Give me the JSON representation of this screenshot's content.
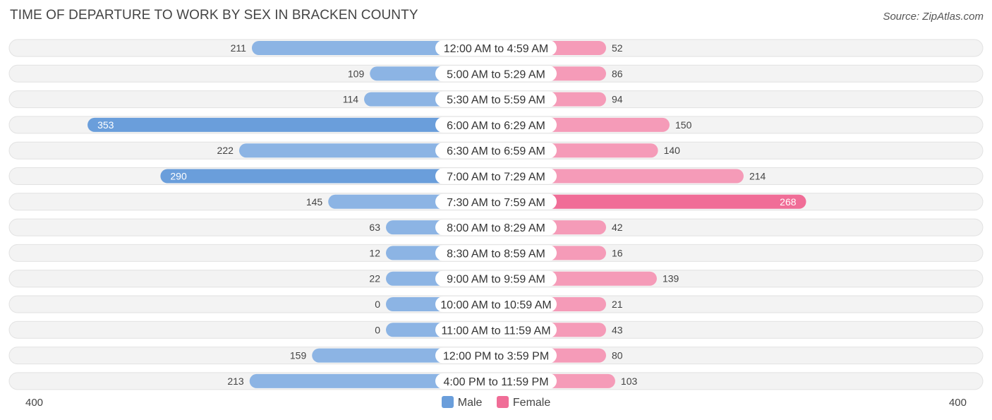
{
  "title": "TIME OF DEPARTURE TO WORK BY SEX IN BRACKEN COUNTY",
  "source": "Source: ZipAtlas.com",
  "legend": {
    "male_label": "Male",
    "female_label": "Female"
  },
  "axis": {
    "left_label": "400",
    "right_label": "400"
  },
  "colors": {
    "male": "#8cb4e4",
    "male_strong": "#6a9edb",
    "female": "#f59bb8",
    "female_strong": "#f06d97",
    "row_bg": "#f1f1f1"
  },
  "chart_data": {
    "type": "bar",
    "orientation": "horizontal-diverging",
    "categories": [
      "12:00 AM to 4:59 AM",
      "5:00 AM to 5:29 AM",
      "5:30 AM to 5:59 AM",
      "6:00 AM to 6:29 AM",
      "6:30 AM to 6:59 AM",
      "7:00 AM to 7:29 AM",
      "7:30 AM to 7:59 AM",
      "8:00 AM to 8:29 AM",
      "8:30 AM to 8:59 AM",
      "9:00 AM to 9:59 AM",
      "10:00 AM to 10:59 AM",
      "11:00 AM to 11:59 AM",
      "12:00 PM to 3:59 PM",
      "4:00 PM to 11:59 PM"
    ],
    "series": [
      {
        "name": "Male",
        "values": [
          211,
          109,
          114,
          353,
          222,
          290,
          145,
          63,
          12,
          22,
          0,
          0,
          159,
          213
        ]
      },
      {
        "name": "Female",
        "values": [
          52,
          86,
          94,
          150,
          140,
          214,
          268,
          42,
          16,
          139,
          21,
          43,
          80,
          103
        ]
      }
    ],
    "xlim": [
      -400,
      400
    ],
    "legend_position": "bottom-center"
  }
}
